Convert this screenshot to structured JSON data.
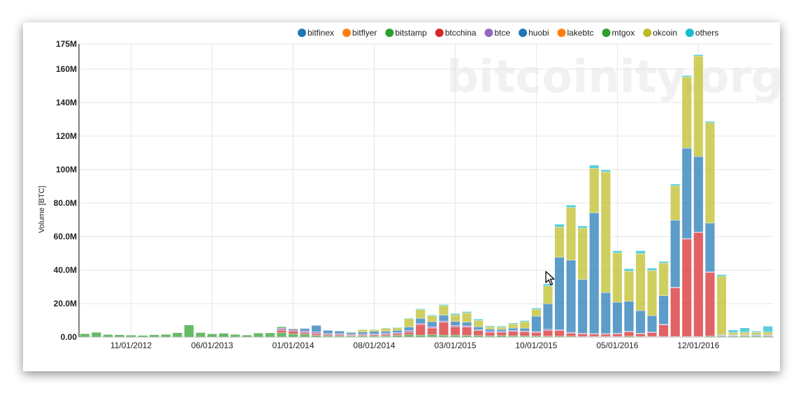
{
  "watermark": "bitcoinity.org",
  "chart_data": {
    "type": "bar",
    "stacked": true,
    "ylabel": "Volume [BTC]",
    "ylim": [
      0,
      175000000
    ],
    "yticks": [
      {
        "value": 0,
        "label": "0.00"
      },
      {
        "value": 20000000,
        "label": "20.0M"
      },
      {
        "value": 40000000,
        "label": "40.0M"
      },
      {
        "value": 60000000,
        "label": "60.0M"
      },
      {
        "value": 80000000,
        "label": "80.0M"
      },
      {
        "value": 100000000,
        "label": "100M"
      },
      {
        "value": 120000000,
        "label": "120M"
      },
      {
        "value": 140000000,
        "label": "140M"
      },
      {
        "value": 160000000,
        "label": "160M"
      },
      {
        "value": 175000000,
        "label": "175M"
      }
    ],
    "xtick_labels": [
      {
        "index": 4,
        "label": "11/01/2012"
      },
      {
        "index": 11,
        "label": "06/01/2013"
      },
      {
        "index": 18,
        "label": "01/01/2014"
      },
      {
        "index": 25,
        "label": "08/01/2014"
      },
      {
        "index": 32,
        "label": "03/01/2015"
      },
      {
        "index": 39,
        "label": "10/01/2015"
      },
      {
        "index": 46,
        "label": "05/01/2016"
      },
      {
        "index": 53,
        "label": "12/01/2016"
      }
    ],
    "legend_position": "top-right",
    "grid": true,
    "months": [
      "07/2012",
      "08/2012",
      "09/2012",
      "10/2012",
      "11/2012",
      "12/2012",
      "01/2013",
      "02/2013",
      "03/2013",
      "04/2013",
      "05/2013",
      "06/2013",
      "07/2013",
      "08/2013",
      "09/2013",
      "10/2013",
      "11/2013",
      "12/2013",
      "01/2014",
      "02/2014",
      "03/2014",
      "04/2014",
      "05/2014",
      "06/2014",
      "07/2014",
      "08/2014",
      "09/2014",
      "10/2014",
      "11/2014",
      "12/2014",
      "01/2015",
      "02/2015",
      "03/2015",
      "04/2015",
      "05/2015",
      "06/2015",
      "07/2015",
      "08/2015",
      "09/2015",
      "10/2015",
      "11/2015",
      "12/2015",
      "01/2016",
      "02/2016",
      "03/2016",
      "04/2016",
      "05/2016",
      "06/2016",
      "07/2016",
      "08/2016",
      "09/2016",
      "10/2016",
      "11/2016",
      "12/2016",
      "01/2017",
      "02/2017",
      "03/2017",
      "04/2017",
      "05/2017",
      "06/2017"
    ],
    "series": [
      {
        "name": "bitfinex",
        "color": "#1f77b4",
        "values": [
          0,
          0,
          0,
          0,
          0,
          0,
          0,
          0,
          0,
          0,
          0,
          0,
          0,
          0,
          0,
          0,
          0,
          0,
          0,
          0,
          0,
          0,
          0,
          0,
          0,
          0,
          0,
          0,
          0,
          0,
          0,
          0,
          0,
          0,
          0,
          0,
          0,
          0,
          0,
          0,
          0,
          0,
          0,
          0,
          0,
          0,
          0,
          0,
          0,
          0,
          0,
          0,
          0,
          0,
          0,
          0,
          0,
          0,
          0,
          0
        ]
      },
      {
        "name": "bitflyer",
        "color": "#ff7f0e",
        "values": [
          0,
          0,
          0,
          0,
          0,
          0,
          0,
          0,
          0,
          0,
          0,
          0,
          0,
          0,
          0,
          0,
          0,
          0,
          0,
          0,
          0,
          0,
          0,
          0,
          0,
          0,
          0,
          0,
          0,
          0,
          0,
          0,
          0,
          0,
          0,
          0,
          0,
          0,
          0,
          0,
          0,
          0,
          0,
          0,
          0,
          0,
          0,
          0,
          0,
          0,
          0,
          0,
          0,
          0,
          0,
          0,
          0,
          0,
          0,
          0
        ]
      },
      {
        "name": "bitstamp",
        "color": "#2ca02c",
        "values": [
          2000000,
          2800000,
          1500000,
          1400000,
          1200000,
          1000000,
          1400000,
          1600000,
          2600000,
          7200000,
          2700000,
          1900000,
          2300000,
          1600000,
          1200000,
          2400000,
          2500000,
          2600000,
          2000000,
          1700000,
          1000000,
          800000,
          700000,
          600000,
          700000,
          700000,
          800000,
          1000000,
          1400000,
          1200000,
          1400000,
          1200000,
          1200000,
          1000000,
          900000,
          800000,
          900000,
          800000,
          700000,
          700000,
          600000,
          500000,
          500000,
          400000,
          400000,
          400000,
          400000,
          500000,
          400000,
          400000,
          400000,
          400000,
          400000,
          400000,
          600000,
          500000,
          600000,
          700000,
          700000,
          700000
        ]
      },
      {
        "name": "btcchina",
        "color": "#d62728",
        "values": [
          0,
          0,
          0,
          0,
          0,
          0,
          0,
          0,
          0,
          0,
          0,
          0,
          0,
          0,
          0,
          0,
          0,
          1500000,
          1500000,
          900000,
          1000000,
          600000,
          600000,
          500000,
          500000,
          600000,
          800000,
          1000000,
          1500000,
          6200000,
          4000000,
          7600000,
          5000000,
          5000000,
          3000000,
          2000000,
          2000000,
          2600000,
          2500000,
          2000000,
          3400000,
          3400000,
          1800000,
          1500000,
          1300000,
          1300000,
          1500000,
          2500000,
          1500000,
          2300000,
          6900000,
          29000000,
          58000000,
          62000000,
          38000000,
          0,
          0,
          0,
          0,
          0
        ]
      },
      {
        "name": "btce",
        "color": "#9467bd",
        "values": [
          0,
          0,
          0,
          0,
          0,
          0,
          0,
          0,
          0,
          0,
          0,
          0,
          0,
          0,
          0,
          0,
          0,
          1200000,
          1200000,
          1000000,
          1200000,
          800000,
          800000,
          600000,
          600000,
          600000,
          700000,
          700000,
          1000000,
          800000,
          800000,
          800000,
          700000,
          700000,
          600000,
          600000,
          500000,
          500000,
          500000,
          600000,
          700000,
          600000,
          600000,
          500000,
          500000,
          400000,
          400000,
          400000,
          400000,
          300000,
          400000,
          400000,
          400000,
          400000,
          400000,
          400000,
          400000,
          400000,
          400000,
          400000
        ]
      },
      {
        "name": "huobi",
        "color": "#1f77b4",
        "values": [
          0,
          0,
          0,
          0,
          0,
          0,
          0,
          0,
          0,
          0,
          0,
          0,
          0,
          0,
          0,
          0,
          0,
          0,
          0,
          1500000,
          3800000,
          1800000,
          1500000,
          1000000,
          1200000,
          1500000,
          1200000,
          1400000,
          2100000,
          3000000,
          3000000,
          3500000,
          2400000,
          2200000,
          1600000,
          1300000,
          1200000,
          1500000,
          1600000,
          9200000,
          15200000,
          43200000,
          43000000,
          32000000,
          72000000,
          24500000,
          18500000,
          18000000,
          13500000,
          9800000,
          17000000,
          40000000,
          54000000,
          45000000,
          29000000,
          400000,
          300000,
          300000,
          400000,
          300000
        ]
      },
      {
        "name": "lakebtc",
        "color": "#ff7f0e",
        "values": [
          0,
          0,
          0,
          0,
          0,
          0,
          0,
          0,
          0,
          0,
          0,
          0,
          0,
          0,
          0,
          0,
          0,
          0,
          0,
          0,
          0,
          0,
          0,
          0,
          0,
          0,
          0,
          0,
          0,
          0,
          0,
          0,
          0,
          0,
          0,
          0,
          0,
          0,
          0,
          0,
          0,
          0,
          0,
          0,
          0,
          0,
          0,
          0,
          0,
          0,
          0,
          0,
          0,
          0,
          0,
          0,
          0,
          0,
          0,
          0
        ]
      },
      {
        "name": "mtgox",
        "color": "#2ca02c",
        "values": [
          0,
          0,
          0,
          0,
          0,
          0,
          0,
          0,
          0,
          0,
          0,
          0,
          0,
          0,
          0,
          0,
          0,
          800000,
          400000,
          200000,
          0,
          0,
          0,
          0,
          0,
          0,
          0,
          0,
          0,
          0,
          0,
          0,
          0,
          0,
          0,
          0,
          0,
          0,
          0,
          0,
          0,
          0,
          0,
          0,
          0,
          0,
          0,
          0,
          0,
          0,
          0,
          0,
          0,
          0,
          0,
          0,
          0,
          0,
          0,
          0
        ]
      },
      {
        "name": "okcoin",
        "color": "#bcbd22",
        "values": [
          0,
          0,
          0,
          0,
          0,
          0,
          0,
          0,
          0,
          0,
          0,
          0,
          0,
          0,
          0,
          0,
          0,
          0,
          0,
          0,
          0,
          0,
          0,
          300000,
          1300000,
          1000000,
          1700000,
          1500000,
          5000000,
          5200000,
          3500000,
          5700000,
          3900000,
          5600000,
          3800000,
          1400000,
          1400000,
          2400000,
          3800000,
          4000000,
          10600000,
          18000000,
          31500000,
          30700000,
          26500000,
          72000000,
          29500000,
          18000000,
          34000000,
          27000000,
          19500000,
          20500000,
          42500000,
          60000000,
          60000000,
          35000000,
          1400000,
          1500000,
          1300000,
          1600000
        ]
      },
      {
        "name": "others",
        "color": "#17becf",
        "values": [
          0,
          0,
          0,
          0,
          0,
          0,
          0,
          0,
          0,
          0,
          0,
          0,
          0,
          0,
          0,
          0,
          0,
          0,
          0,
          0,
          0,
          0,
          0,
          300000,
          300000,
          300000,
          300000,
          300000,
          400000,
          500000,
          500000,
          600000,
          800000,
          700000,
          800000,
          600000,
          600000,
          600000,
          700000,
          800000,
          1200000,
          1700000,
          1400000,
          1300000,
          2000000,
          1200000,
          1200000,
          1400000,
          1800000,
          1400000,
          1000000,
          1000000,
          800000,
          800000,
          800000,
          1000000,
          1500000,
          2600000,
          700000,
          3500000
        ]
      }
    ]
  },
  "ui": {
    "cursor": "arrow-cursor"
  }
}
